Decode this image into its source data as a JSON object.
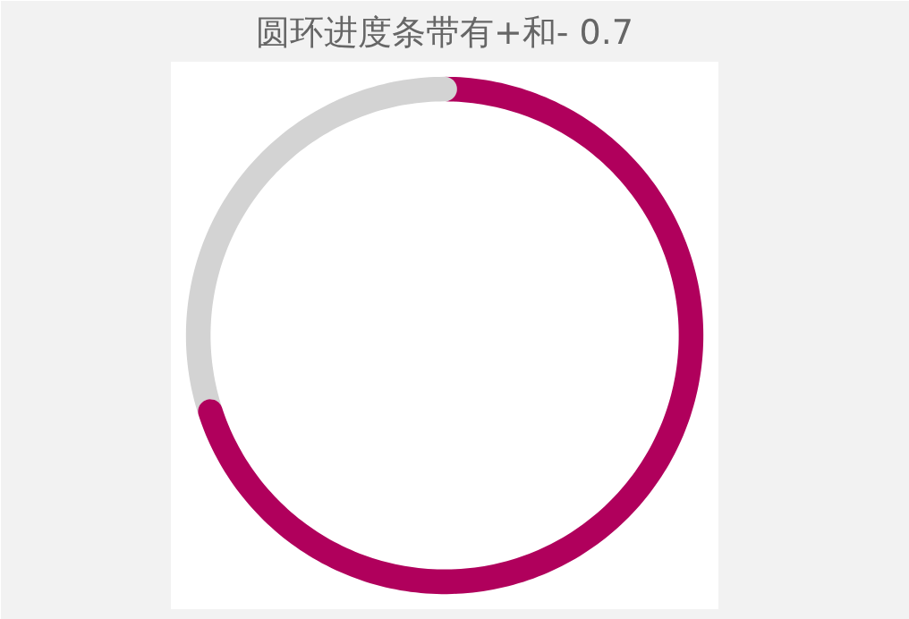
{
  "chart_data": {
    "type": "donut",
    "title": "圆环进度条带有+和- 0.7",
    "categories": [
      null,
      null
    ],
    "values": [
      70,
      30
    ],
    "colors": [
      "#b0005c",
      "#d3d3d3"
    ]
  }
}
